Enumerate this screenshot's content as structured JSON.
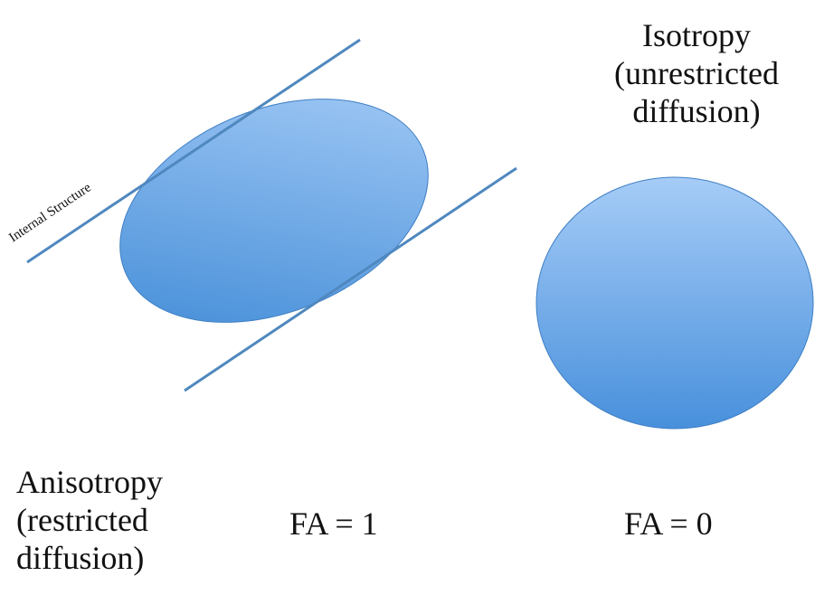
{
  "isotropy": {
    "line1": "Isotropy",
    "line2": "(unrestricted",
    "line3": "diffusion)"
  },
  "anisotropy": {
    "line1": "Anisotropy",
    "line2": "(restricted",
    "line3": "diffusion)"
  },
  "structure_label": "Internal Structure",
  "fa_anisotropic": "FA = 1",
  "fa_isotropic": "FA = 0",
  "colors": {
    "line": "#4f88bf",
    "fill_light": "#a6ccf7",
    "fill_dark": "#3f8ad6",
    "outline": "#3f7fc4"
  }
}
